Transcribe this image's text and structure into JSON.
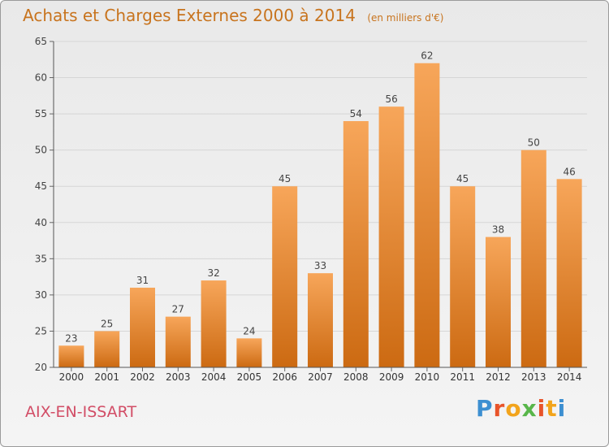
{
  "header": {
    "title": "Achats et Charges Externes 2000 à 2014",
    "unit": "(en milliers d'€)"
  },
  "footer": {
    "commune": "AIX-EN-ISSART",
    "logo": "Proxiti"
  },
  "colors": {
    "title": "#c8741e",
    "commune": "#d24d66",
    "bar_top": "#f7a65a",
    "bar_bottom": "#cc6a12"
  },
  "chart_data": {
    "type": "bar",
    "title": "Achats et Charges Externes 2000 à 2014",
    "subtitle": "(en milliers d'€)",
    "categories": [
      "2000",
      "2001",
      "2002",
      "2003",
      "2004",
      "2005",
      "2006",
      "2007",
      "2008",
      "2009",
      "2010",
      "2011",
      "2012",
      "2013",
      "2014"
    ],
    "values": [
      23,
      25,
      31,
      27,
      32,
      24,
      45,
      33,
      54,
      56,
      62,
      45,
      38,
      50,
      46
    ],
    "ylim": [
      20,
      65
    ],
    "yticks": [
      20,
      25,
      30,
      35,
      40,
      45,
      50,
      55,
      60,
      65
    ],
    "grid": true,
    "xlabel": "",
    "ylabel": ""
  }
}
